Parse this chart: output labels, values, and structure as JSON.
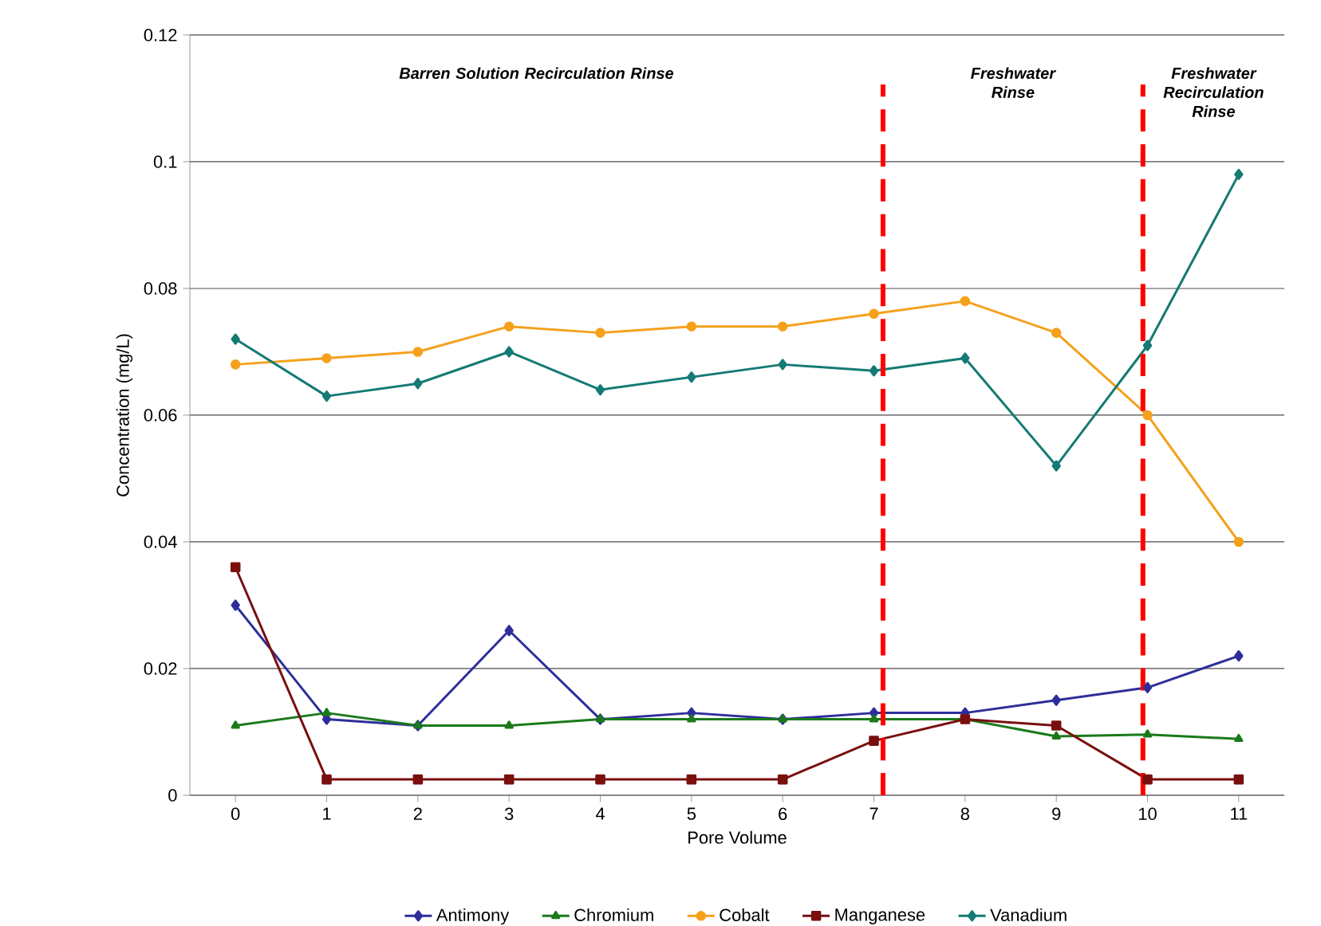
{
  "chart_data": {
    "type": "line",
    "xlabel": "Pore Volume",
    "ylabel": "Concentration (mg/L)",
    "x": [
      0,
      1,
      2,
      3,
      4,
      5,
      6,
      7,
      8,
      9,
      10,
      11
    ],
    "xlim": [
      -0.5,
      11.5
    ],
    "xticks": [
      0,
      1,
      2,
      3,
      4,
      5,
      6,
      7,
      8,
      9,
      10,
      11
    ],
    "ylim": [
      0,
      0.12
    ],
    "yticks": [
      0,
      0.02,
      0.04,
      0.06,
      0.08,
      0.1,
      0.12
    ],
    "grid": "y",
    "legend": "bottom",
    "line_style": "solid",
    "series": [
      {
        "name": "Antimony",
        "color": "#2e2e9a",
        "marker": "diamond",
        "values": [
          0.03,
          0.012,
          0.011,
          0.026,
          0.012,
          0.013,
          0.012,
          0.013,
          0.013,
          0.015,
          0.017,
          0.022
        ]
      },
      {
        "name": "Chromium",
        "color": "#1a7a1a",
        "marker": "triangle",
        "values": [
          0.011,
          0.013,
          0.011,
          0.011,
          0.012,
          0.012,
          0.012,
          0.012,
          0.012,
          0.0093,
          0.0096,
          0.0089
        ]
      },
      {
        "name": "Cobalt",
        "color": "#f5a11c",
        "marker": "circle",
        "values": [
          0.068,
          0.069,
          0.07,
          0.074,
          0.073,
          0.074,
          0.074,
          0.076,
          0.078,
          0.073,
          0.06,
          0.04
        ]
      },
      {
        "name": "Manganese",
        "color": "#7a0f0f",
        "marker": "square",
        "values": [
          0.036,
          0.0025,
          0.0025,
          0.0025,
          0.0025,
          0.0025,
          0.0025,
          0.0086,
          0.012,
          0.011,
          0.0025,
          0.0025
        ]
      },
      {
        "name": "Vanadium",
        "color": "#147a74",
        "marker": "diamond",
        "values": [
          0.072,
          0.063,
          0.065,
          0.07,
          0.064,
          0.066,
          0.068,
          0.067,
          0.069,
          0.052,
          0.071,
          0.098
        ]
      }
    ],
    "ref_lines": [
      {
        "axis": "x",
        "value": 7.1,
        "color": "#ff0000",
        "line_style": "dashed"
      },
      {
        "axis": "x",
        "value": 9.95,
        "color": "#ff0000",
        "line_style": "dashed"
      }
    ],
    "annotations": [
      "Barren Solution Recirculation Rinse",
      "Freshwater Rinse",
      "Freshwater Recirculation Rinse"
    ]
  }
}
